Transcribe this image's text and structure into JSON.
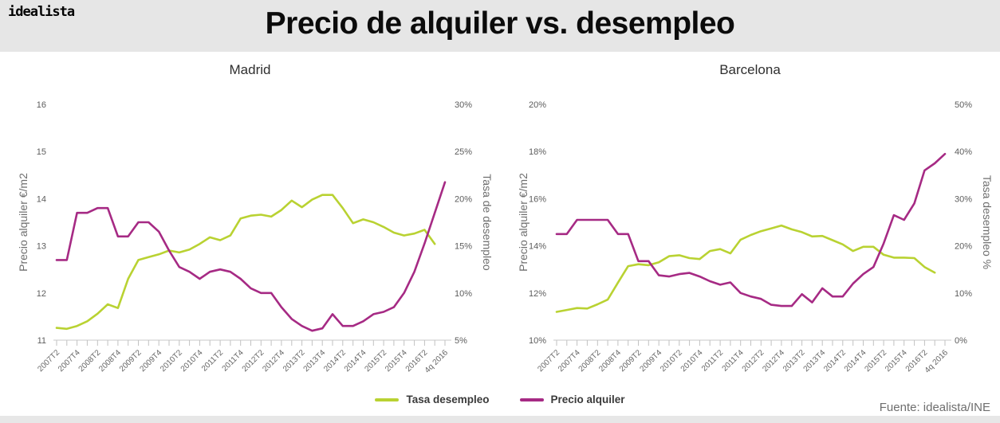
{
  "header": {
    "logo": "idealista",
    "title": "Precio de alquiler vs. desempleo"
  },
  "footer": {
    "source": "Fuente: idealista/INE"
  },
  "legend": [
    {
      "label": "Tasa desempleo",
      "color": "#b9d232"
    },
    {
      "label": "Precio alquiler",
      "color": "#a62a84"
    }
  ],
  "colors": {
    "header_band": "#e6e6e6",
    "axis_line": "#c9c9c9",
    "tick_text": "#5c5c5c",
    "axis_label_text": "#6e6e6e",
    "desempleo_line": "#b9d232",
    "precio_line": "#a62a84"
  },
  "chart_data": [
    {
      "type": "line",
      "title": "Madrid",
      "x": [
        "2007T2",
        "2007T3",
        "2007T4",
        "2008T1",
        "2008T2",
        "2008T3",
        "2008T4",
        "2009T1",
        "2009T2",
        "2009T3",
        "2009T4",
        "2010T1",
        "2010T2",
        "2010T3",
        "2010T4",
        "2011T1",
        "2011T2",
        "2011T3",
        "2011T4",
        "2012T1",
        "2012T2",
        "2012T3",
        "2012T4",
        "2013T1",
        "2013T2",
        "2013T3",
        "2013T4",
        "2014T1",
        "2014T2",
        "2014T3",
        "2014T4",
        "2015T1",
        "2015T2",
        "2015T3",
        "2015T4",
        "2016T1",
        "2016T2",
        "2016T3",
        "2016T4"
      ],
      "x_tick_labels": [
        "2007T2",
        "2007T4",
        "2008T2",
        "2008T4",
        "2009T2",
        "2009T4",
        "2010T2",
        "2010T4",
        "2011T2",
        "2011T4",
        "2012T2",
        "2012T4",
        "2013T2",
        "2013T4",
        "2014T2",
        "2014T4",
        "2015T2",
        "2015T4",
        "2016T2",
        "4q 2016"
      ],
      "left_axis": {
        "label": "Precio alquiler €/m2",
        "ticks": [
          "16",
          "15",
          "14",
          "13",
          "12",
          "11"
        ],
        "range": [
          11,
          16
        ]
      },
      "right_axis": {
        "label": "Tasa de desempleo",
        "ticks": [
          "30%",
          "25%",
          "20%",
          "15%",
          "10%",
          "5%"
        ],
        "range": [
          5,
          30
        ]
      },
      "grid": false,
      "series": [
        {
          "name": "Tasa desempleo",
          "axis": "right",
          "color": "#b9d232",
          "values": [
            6.3,
            6.2,
            6.5,
            7.0,
            7.8,
            8.8,
            8.4,
            11.5,
            13.5,
            13.8,
            14.1,
            14.5,
            14.3,
            14.6,
            15.2,
            15.9,
            15.6,
            16.1,
            17.9,
            18.2,
            18.3,
            18.1,
            18.8,
            19.8,
            19.1,
            19.9,
            20.4,
            20.4,
            19.0,
            17.4,
            17.8,
            17.5,
            17.0,
            16.4,
            16.1,
            16.3,
            16.7,
            15.2,
            null
          ]
        },
        {
          "name": "Precio alquiler",
          "axis": "left",
          "color": "#a62a84",
          "values": [
            12.7,
            12.7,
            13.7,
            13.7,
            13.8,
            13.8,
            13.2,
            13.2,
            13.5,
            13.5,
            13.3,
            12.9,
            12.55,
            12.45,
            12.3,
            12.45,
            12.5,
            12.45,
            12.3,
            12.1,
            12.0,
            12.0,
            11.7,
            11.45,
            11.3,
            11.2,
            11.25,
            11.55,
            11.3,
            11.3,
            11.4,
            11.55,
            11.6,
            11.7,
            12.0,
            12.45,
            13.05,
            13.7,
            14.35
          ]
        }
      ]
    },
    {
      "type": "line",
      "title": "Barcelona",
      "x": [
        "2007T2",
        "2007T3",
        "2007T4",
        "2008T1",
        "2008T2",
        "2008T3",
        "2008T4",
        "2009T1",
        "2009T2",
        "2009T3",
        "2009T4",
        "2010T1",
        "2010T2",
        "2010T3",
        "2010T4",
        "2011T1",
        "2011T2",
        "2011T3",
        "2011T4",
        "2012T1",
        "2012T2",
        "2012T3",
        "2012T4",
        "2013T1",
        "2013T2",
        "2013T3",
        "2013T4",
        "2014T1",
        "2014T2",
        "2014T3",
        "2014T4",
        "2015T1",
        "2015T2",
        "2015T3",
        "2015T4",
        "2016T1",
        "2016T2",
        "2016T3",
        "2016T4"
      ],
      "x_tick_labels": [
        "2007T2",
        "2007T4",
        "2008T2",
        "2008T4",
        "2009T2",
        "2009T4",
        "2010T2",
        "2010T4",
        "2011T2",
        "2011T4",
        "2012T2",
        "2012T4",
        "2013T2",
        "2013T4",
        "2014T2",
        "2014T4",
        "2015T2",
        "2015T4",
        "2016T2",
        "4q 2016"
      ],
      "left_axis": {
        "label": "Precio alquiler €/m2",
        "ticks": [
          "20%",
          "18%",
          "16%",
          "14%",
          "12%",
          "10%"
        ],
        "range": [
          10,
          20
        ]
      },
      "right_axis": {
        "label": "Tasa desempleo %",
        "ticks": [
          "50%",
          "40%",
          "30%",
          "20%",
          "10%",
          "0%"
        ],
        "range": [
          0,
          50
        ]
      },
      "grid": false,
      "series": [
        {
          "name": "Tasa desempleo",
          "axis": "right",
          "color": "#b9d232",
          "values": [
            6.0,
            6.4,
            6.8,
            6.7,
            7.6,
            8.6,
            12.2,
            15.7,
            16.1,
            15.9,
            16.5,
            17.8,
            18.0,
            17.4,
            17.2,
            18.9,
            19.3,
            18.4,
            21.3,
            22.3,
            23.1,
            23.7,
            24.3,
            23.5,
            22.9,
            22.0,
            22.1,
            21.2,
            20.3,
            18.9,
            19.8,
            19.8,
            18.1,
            17.5,
            17.5,
            17.4,
            15.5,
            14.3,
            null
          ]
        },
        {
          "name": "Precio alquiler",
          "axis": "left",
          "color": "#a62a84",
          "values": [
            14.5,
            14.5,
            15.1,
            15.1,
            15.1,
            15.1,
            14.5,
            14.5,
            13.35,
            13.35,
            12.75,
            12.7,
            12.8,
            12.85,
            12.7,
            12.5,
            12.35,
            12.45,
            12.0,
            11.85,
            11.75,
            11.5,
            11.45,
            11.45,
            11.95,
            11.6,
            12.2,
            11.85,
            11.85,
            12.4,
            12.8,
            13.1,
            14.1,
            15.3,
            15.1,
            15.8,
            17.2,
            17.5,
            17.9
          ]
        }
      ]
    }
  ]
}
